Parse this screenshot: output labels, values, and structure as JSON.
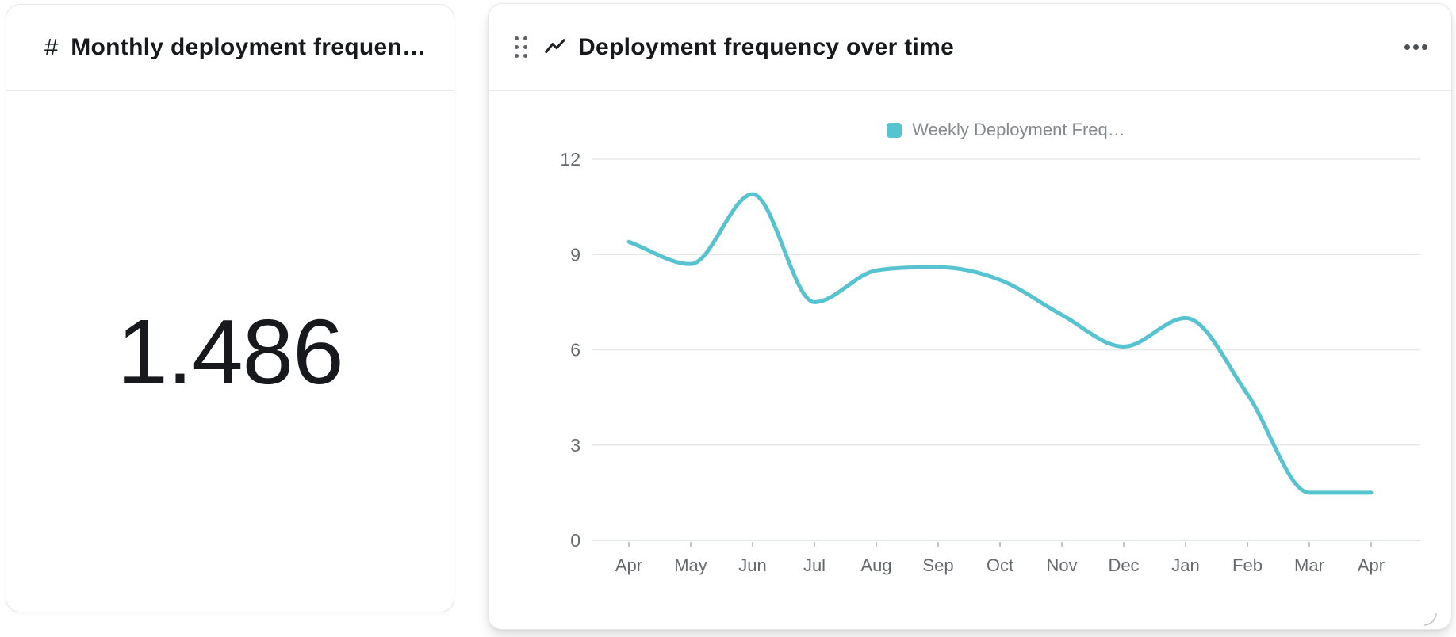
{
  "colors": {
    "accent": "#58c3d0",
    "card_border": "#e5e6e8",
    "divider": "#e9eaec",
    "title_text": "#17191c",
    "axis_text": "#66696d",
    "legend_text": "#85898d",
    "gridline": "#e7e8ea",
    "zero_line": "#dcdfe2"
  },
  "left_card": {
    "type_icon": "#",
    "title": "Monthly deployment frequen…",
    "value": "1.486"
  },
  "right_card": {
    "type_icon": "line-chart-icon",
    "menu_icon": "ellipsis-menu-icon",
    "drag_icon": "drag-handle-dots-icon",
    "title": "Deployment frequency over time"
  },
  "chart_data": {
    "type": "line",
    "title": "Deployment frequency over time",
    "legend_position": "top",
    "grid": true,
    "x_labels": [
      "Apr",
      "May",
      "Jun",
      "Jul",
      "Aug",
      "Sep",
      "Oct",
      "Nov",
      "Dec",
      "Jan",
      "Feb",
      "Mar",
      "Apr"
    ],
    "ylim": [
      0,
      12
    ],
    "yticks": [
      0,
      3,
      6,
      9,
      12
    ],
    "series": [
      {
        "name": "Weekly Deployment Freq…",
        "color": "#58c3d0",
        "values": [
          9.4,
          8.7,
          10.9,
          7.5,
          8.5,
          8.6,
          8.2,
          7.1,
          6.1,
          7.0,
          4.6,
          1.5,
          1.5
        ]
      }
    ]
  }
}
